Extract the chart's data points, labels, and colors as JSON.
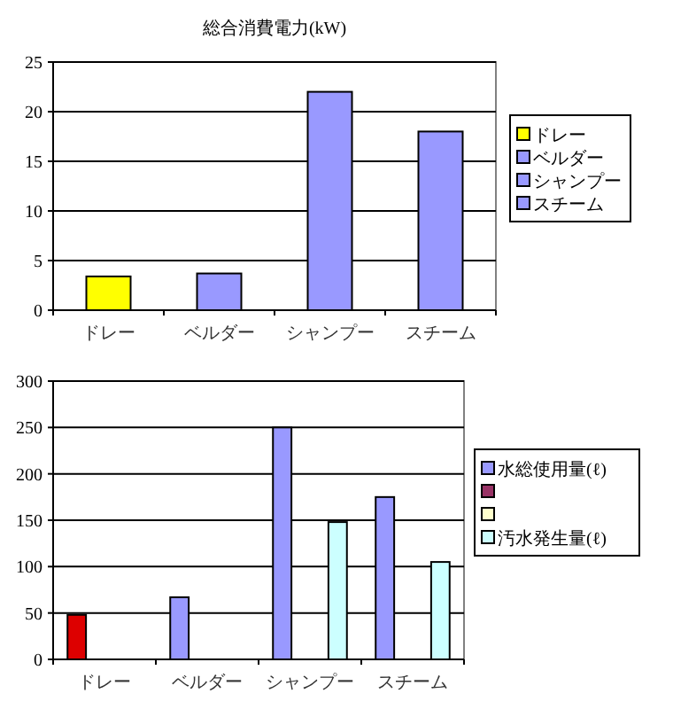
{
  "chart_data": [
    {
      "type": "bar",
      "title": "総合消費電力(kW)",
      "categories": [
        "ドレー",
        "ベルダー",
        "シャンプー",
        "スチーム"
      ],
      "stacked": true,
      "series": [
        {
          "name": "ドレー",
          "color": "#ffff00",
          "values": [
            3.4,
            null,
            null,
            null
          ]
        },
        {
          "name": "ベルダー",
          "color": "#9999ff",
          "values": [
            null,
            3.7,
            null,
            null
          ]
        },
        {
          "name": "シャンプー",
          "color": "#9999ff",
          "values": [
            null,
            null,
            22,
            null
          ]
        },
        {
          "name": "スチーム",
          "color": "#9999ff",
          "values": [
            null,
            null,
            null,
            18
          ]
        }
      ],
      "ylim": [
        0,
        25
      ],
      "yticks": [
        0,
        5,
        10,
        15,
        20,
        25
      ],
      "grid": "y",
      "legend": "right"
    },
    {
      "type": "bar",
      "categories": [
        "ドレー",
        "ベルダー",
        "シャンプー",
        "スチーム"
      ],
      "series": [
        {
          "name": "水総使用量(ℓ)",
          "color": "#9999ff",
          "colors": [
            "#dd0000",
            "#9999ff",
            "#9999ff",
            "#9999ff"
          ],
          "values": [
            48,
            67,
            250,
            175
          ]
        },
        {
          "color": "#993366",
          "values": [
            null,
            null,
            null,
            null
          ]
        },
        {
          "color": "#ffffcc",
          "values": [
            null,
            null,
            null,
            null
          ]
        },
        {
          "name": "汚水発生量(ℓ)",
          "color": "#ccffff",
          "values": [
            null,
            null,
            148,
            105
          ]
        }
      ],
      "ylim": [
        0,
        300
      ],
      "yticks": [
        0,
        50,
        100,
        150,
        200,
        250,
        300
      ],
      "grid": "y",
      "legend": "right"
    }
  ]
}
